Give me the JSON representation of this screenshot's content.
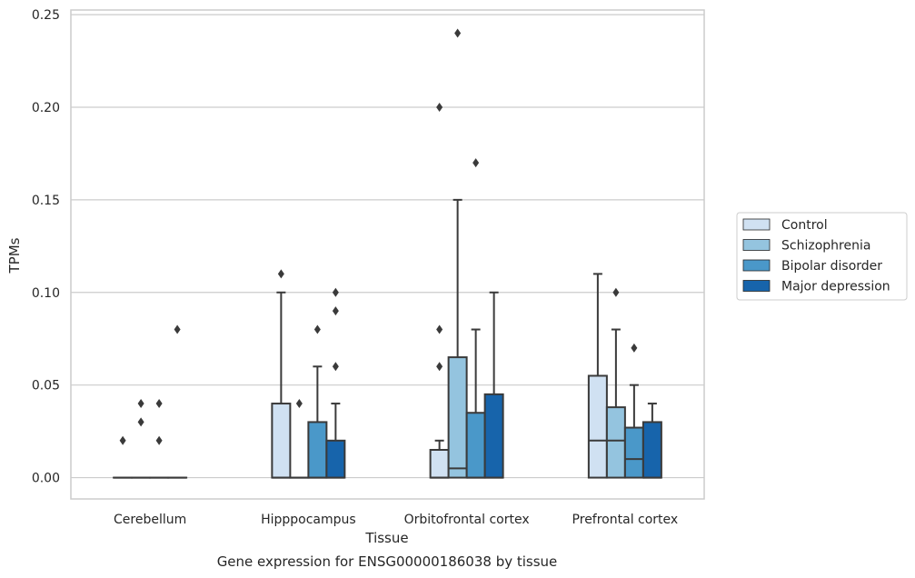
{
  "caption": "Gene expression for ENSG00000186038 by tissue",
  "chart_data": {
    "type": "box",
    "xlabel": "Tissue",
    "ylabel": "TPMs",
    "ylim": [
      -0.0115,
      0.2525
    ],
    "yticks": [
      "0.00",
      "0.05",
      "0.10",
      "0.15",
      "0.20",
      "0.25"
    ],
    "grid": true,
    "legend_position": "right",
    "categories": [
      "Cerebellum",
      "Hipppocampus",
      "Orbitofrontal cortex",
      "Prefrontal cortex"
    ],
    "series": [
      {
        "name": "Control",
        "color": "#d0e1f2",
        "boxes": [
          {
            "q1": 0,
            "median": 0,
            "q3": 0,
            "whisker_low": 0,
            "whisker_high": 0,
            "outliers": [
              0.02
            ]
          },
          {
            "q1": 0,
            "median": 0,
            "q3": 0.04,
            "whisker_low": 0,
            "whisker_high": 0.1,
            "outliers": [
              0.11
            ]
          },
          {
            "q1": 0,
            "median": 0,
            "q3": 0.015,
            "whisker_low": 0,
            "whisker_high": 0.02,
            "outliers": [
              0.06,
              0.08,
              0.2
            ]
          },
          {
            "q1": 0,
            "median": 0.02,
            "q3": 0.055,
            "whisker_low": 0,
            "whisker_high": 0.11,
            "outliers": []
          }
        ]
      },
      {
        "name": "Schizophrenia",
        "color": "#94c4df",
        "boxes": [
          {
            "q1": 0,
            "median": 0,
            "q3": 0,
            "whisker_low": 0,
            "whisker_high": 0,
            "outliers": [
              0.03,
              0.04
            ]
          },
          {
            "q1": 0,
            "median": 0,
            "q3": 0,
            "whisker_low": 0,
            "whisker_high": 0,
            "outliers": [
              0.04
            ]
          },
          {
            "q1": 0,
            "median": 0.005,
            "q3": 0.065,
            "whisker_low": 0,
            "whisker_high": 0.15,
            "outliers": [
              0.24
            ]
          },
          {
            "q1": 0,
            "median": 0.02,
            "q3": 0.038,
            "whisker_low": 0,
            "whisker_high": 0.08,
            "outliers": [
              0.1
            ]
          }
        ]
      },
      {
        "name": "Bipolar disorder",
        "color": "#4a98c9",
        "boxes": [
          {
            "q1": 0,
            "median": 0,
            "q3": 0,
            "whisker_low": 0,
            "whisker_high": 0,
            "outliers": [
              0.02,
              0.04
            ]
          },
          {
            "q1": 0,
            "median": 0,
            "q3": 0.03,
            "whisker_low": 0,
            "whisker_high": 0.06,
            "outliers": [
              0.08
            ]
          },
          {
            "q1": 0,
            "median": 0,
            "q3": 0.035,
            "whisker_low": 0,
            "whisker_high": 0.08,
            "outliers": [
              0.17
            ]
          },
          {
            "q1": 0,
            "median": 0.01,
            "q3": 0.027,
            "whisker_low": 0,
            "whisker_high": 0.05,
            "outliers": [
              0.07
            ]
          }
        ]
      },
      {
        "name": "Major depression",
        "color": "#1764ab",
        "boxes": [
          {
            "q1": 0,
            "median": 0,
            "q3": 0,
            "whisker_low": 0,
            "whisker_high": 0,
            "outliers": [
              0.08
            ]
          },
          {
            "q1": 0,
            "median": 0,
            "q3": 0.02,
            "whisker_low": 0,
            "whisker_high": 0.04,
            "outliers": [
              0.06,
              0.09,
              0.1
            ]
          },
          {
            "q1": 0,
            "median": 0,
            "q3": 0.045,
            "whisker_low": 0,
            "whisker_high": 0.1,
            "outliers": []
          },
          {
            "q1": 0,
            "median": 0,
            "q3": 0.03,
            "whisker_low": 0,
            "whisker_high": 0.04,
            "outliers": []
          }
        ]
      }
    ]
  }
}
